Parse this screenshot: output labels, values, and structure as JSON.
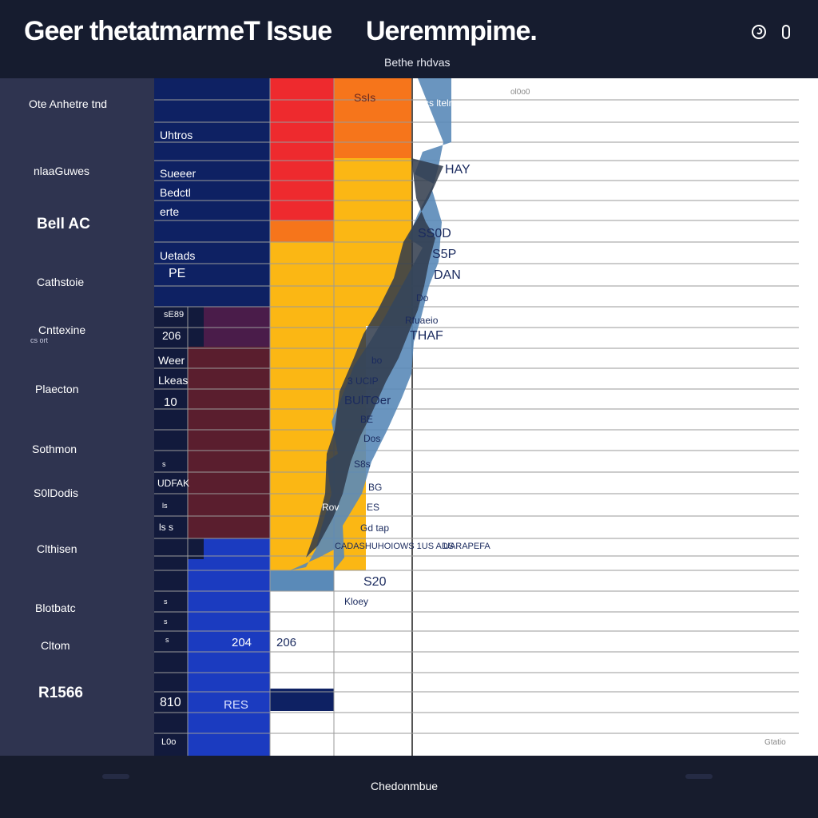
{
  "header": {
    "app_title": "Geer thetatmarmeT Issue",
    "page_heading": "Ueremmpime.",
    "subheading": "Bethe rhdvas",
    "help_icon": "help-circle-icon",
    "menu_icon": "pill-menu-icon"
  },
  "sidebar": {
    "items": [
      {
        "label": "Ote  Anhetre tnd"
      },
      {
        "label": "nlaaGuwes"
      },
      {
        "label": "BeIl AC"
      },
      {
        "label": "Cathstoie"
      },
      {
        "label": "Cnttexine",
        "sub": "cs ort"
      },
      {
        "label": "Plaecton"
      },
      {
        "label": "Sothmon"
      },
      {
        "label": "S0lDodis"
      },
      {
        "label": "Clthisen"
      },
      {
        "label": "Blotbatc"
      },
      {
        "label": "Cltom"
      },
      {
        "label": "R1566"
      }
    ]
  },
  "table": {
    "row_labels": [
      "Uhtros",
      "Sueeer",
      "Bedctl",
      "erte",
      "Uetads",
      "PE",
      "sE89",
      "206",
      "Weer",
      "Lkeas",
      "10",
      "s",
      "UDFAK",
      "ls",
      "ls s",
      "s",
      "s",
      "s",
      "810",
      "L0o"
    ],
    "cells": [
      "SsIs",
      "204",
      "206",
      "RES"
    ],
    "annotations": [
      "cs ltelne",
      "HAY",
      "SS0D",
      "S5P",
      "DAN",
      "Do",
      "Rfuaeio",
      "THAF",
      "bo",
      "3 UCIP",
      "BUlTOer",
      "BE",
      "Dos",
      "S8s",
      "BG",
      "Rov",
      "ES",
      "Gd tap",
      "CADASHUHOIOWS 1US ADS",
      "UARAPEFA",
      "S20",
      "Kloey",
      "ol0o0",
      "Gtatio"
    ]
  },
  "footer": {
    "label": "Chedonmbue"
  },
  "colors": {
    "navy": "#0e2163",
    "red": "#ee2a2e",
    "orange": "#f6751b",
    "amber": "#fbb714",
    "plum": "#4a1c4a",
    "maroon": "#5a1e2e",
    "blue": "#1b3bc0",
    "steel": "#5a8ab8"
  }
}
